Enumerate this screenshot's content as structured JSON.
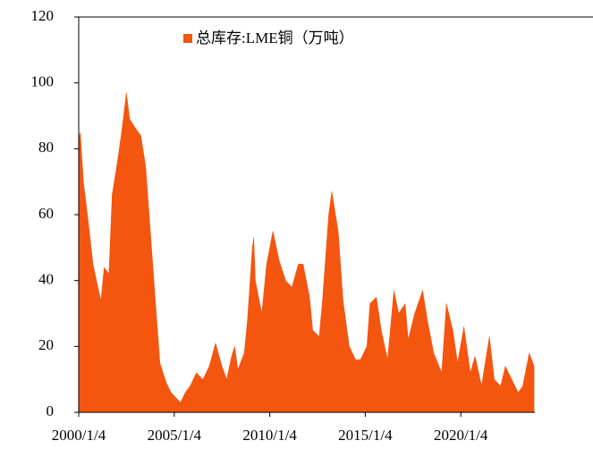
{
  "chart_data": {
    "type": "area",
    "x": [
      "2000/1/4",
      "2000/2/4",
      "2000/4/4",
      "2000/7/4",
      "2000/10/4",
      "2001/1/4",
      "2001/3/4",
      "2001/5/4",
      "2001/8/4",
      "2001/10/4",
      "2002/1/4",
      "2002/4/4",
      "2002/7/4",
      "2002/9/4",
      "2003/1/4",
      "2003/4/4",
      "2003/7/4",
      "2003/10/4",
      "2004/1/4",
      "2004/4/4",
      "2004/8/4",
      "2004/11/4",
      "2005/3/4",
      "2005/5/4",
      "2005/8/4",
      "2005/11/4",
      "2006/3/4",
      "2006/7/4",
      "2006/11/4",
      "2007/3/4",
      "2007/7/4",
      "2007/10/4",
      "2008/1/4",
      "2008/3/4",
      "2008/5/4",
      "2008/9/4",
      "2008/11/4",
      "2009/2/4",
      "2009/3/4",
      "2009/4/4",
      "2009/8/4",
      "2009/11/4",
      "2010/3/4",
      "2010/7/4",
      "2010/11/4",
      "2011/3/4",
      "2011/7/4",
      "2011/10/4",
      "2012/2/4",
      "2012/4/4",
      "2012/8/4",
      "2012/10/4",
      "2013/2/4",
      "2013/4/4",
      "2013/8/4",
      "2013/11/4",
      "2014/3/4",
      "2014/7/4",
      "2014/10/4",
      "2015/2/4",
      "2015/4/4",
      "2015/8/4",
      "2015/11/4",
      "2016/3/4",
      "2016/7/4",
      "2016/10/4",
      "2017/2/4",
      "2017/4/4",
      "2017/8/4",
      "2018/1/4",
      "2018/4/4",
      "2018/8/4",
      "2019/1/4",
      "2019/4/4",
      "2019/8/4",
      "2019/11/4",
      "2020/3/4",
      "2020/7/4",
      "2020/10/4",
      "2021/2/4",
      "2021/7/4",
      "2021/10/4",
      "2022/2/4",
      "2022/5/4",
      "2022/9/4",
      "2023/1/4",
      "2023/4/4",
      "2023/8/4",
      "2023/11/4"
    ],
    "series": [
      {
        "name": "总库存:LME铜（万吨）",
        "color": "#f4550f",
        "values": [
          83,
          85,
          70,
          58,
          45,
          38,
          34,
          44,
          42,
          66,
          75,
          85,
          97,
          89,
          86,
          84,
          75,
          55,
          35,
          15,
          9,
          6,
          4,
          3,
          6,
          8,
          12,
          10,
          14,
          21,
          14,
          10,
          17,
          20,
          13,
          18,
          28,
          50,
          53,
          40,
          30,
          45,
          55,
          46,
          40,
          38,
          45,
          45,
          35,
          25,
          23,
          33,
          60,
          67,
          55,
          34,
          20,
          16,
          16,
          20,
          33,
          35,
          25,
          16,
          37,
          30,
          33,
          22,
          30,
          37,
          28,
          18,
          12,
          33,
          25,
          15,
          26,
          12,
          17,
          8,
          23,
          10,
          8,
          14,
          10,
          6,
          8,
          18,
          14
        ]
      }
    ],
    "xlim": [
      "2000/1/4",
      "2023/11/20"
    ],
    "xticks": [
      "2000/1/4",
      "2005/1/4",
      "2010/1/4",
      "2015/1/4",
      "2020/1/4"
    ],
    "ylim": [
      0,
      120
    ],
    "yticks": [
      0,
      20,
      40,
      60,
      80,
      100,
      120
    ],
    "legend": "top"
  }
}
